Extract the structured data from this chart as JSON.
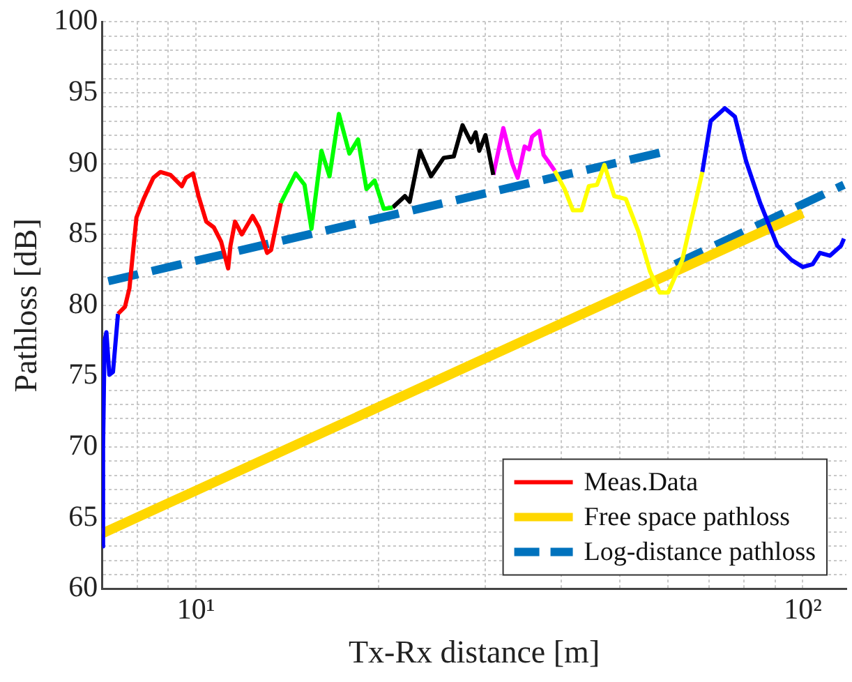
{
  "chart_data": {
    "type": "line",
    "xlabel": "Tx-Rx distance [m]",
    "ylabel": "Pathloss [dB]",
    "log": "x",
    "grid": true,
    "legend": "bottom right",
    "xlim": [
      7,
      118
    ],
    "ylim": [
      60,
      100
    ],
    "xticks": [
      {
        "value": 7,
        "label": null
      },
      {
        "value": 8,
        "label": null
      },
      {
        "value": 9,
        "label": null
      },
      {
        "value": 10,
        "label": "10¹"
      },
      {
        "value": 20,
        "label": null
      },
      {
        "value": 30,
        "label": null
      },
      {
        "value": 40,
        "label": null
      },
      {
        "value": 50,
        "label": null
      },
      {
        "value": 60,
        "label": null
      },
      {
        "value": 70,
        "label": null
      },
      {
        "value": 80,
        "label": null
      },
      {
        "value": 90,
        "label": null
      },
      {
        "value": 100,
        "label": "10²"
      }
    ],
    "yticks": [
      60,
      {
        "value": 61,
        "label": null
      },
      {
        "value": 62,
        "label": null
      },
      {
        "value": 63,
        "label": null
      },
      {
        "value": 64,
        "label": null
      },
      65,
      {
        "value": 66,
        "label": null
      },
      {
        "value": 67,
        "label": null
      },
      {
        "value": 68,
        "label": null
      },
      {
        "value": 69,
        "label": null
      },
      70,
      {
        "value": 71,
        "label": null
      },
      {
        "value": 72,
        "label": null
      },
      {
        "value": 73,
        "label": null
      },
      {
        "value": 74,
        "label": null
      },
      75,
      {
        "value": 76,
        "label": null
      },
      {
        "value": 77,
        "label": null
      },
      {
        "value": 78,
        "label": null
      },
      {
        "value": 79,
        "label": null
      },
      80,
      {
        "value": 81,
        "label": null
      },
      {
        "value": 82,
        "label": null
      },
      {
        "value": 83,
        "label": null
      },
      {
        "value": 84,
        "label": null
      },
      85,
      {
        "value": 86,
        "label": null
      },
      {
        "value": 87,
        "label": null
      },
      {
        "value": 88,
        "label": null
      },
      {
        "value": 89,
        "label": null
      },
      90,
      {
        "value": 91,
        "label": null
      },
      {
        "value": 92,
        "label": null
      },
      {
        "value": 93,
        "label": null
      },
      {
        "value": 94,
        "label": null
      },
      95,
      {
        "value": 96,
        "label": null
      },
      {
        "value": 97,
        "label": null
      },
      {
        "value": 98,
        "label": null
      },
      {
        "value": 99,
        "label": null
      },
      100
    ],
    "series": [
      {
        "name": "Meas.Data",
        "color": "#ff0000",
        "x": [
          7.44,
          7.64,
          7.77,
          7.98,
          8.2,
          8.51,
          8.74,
          9.08,
          9.48,
          9.63,
          9.89,
          10.1,
          10.4,
          10.7,
          11.0,
          11.3,
          11.4,
          11.6,
          11.9,
          12.4,
          12.7,
          13.1,
          13.3,
          13.8
        ],
        "values": [
          79.4,
          79.9,
          81.2,
          86.2,
          87.5,
          89.0,
          89.4,
          89.2,
          88.4,
          89.0,
          89.3,
          87.7,
          85.9,
          85.5,
          84.5,
          82.6,
          84.2,
          85.9,
          85.0,
          86.3,
          85.5,
          83.7,
          83.9,
          87.2
        ]
      },
      {
        "color": "#00ff00",
        "x": [
          13.8,
          14.6,
          15.1,
          15.5,
          16.1,
          16.6,
          17.2,
          17.9,
          18.5,
          19.1,
          19.7,
          20.4,
          21.1
        ],
        "values": [
          87.2,
          89.3,
          88.5,
          85.4,
          90.9,
          89.1,
          93.5,
          90.7,
          91.7,
          88.2,
          88.8,
          86.8,
          86.9
        ]
      },
      {
        "color": "#000000",
        "x": [
          21.1,
          22.1,
          22.5,
          23.4,
          24.4,
          25.6,
          26.6,
          27.5,
          28.4,
          28.9,
          29.3,
          30.0,
          30.9
        ],
        "values": [
          86.9,
          87.7,
          87.3,
          90.9,
          89.1,
          90.4,
          90.5,
          92.7,
          91.5,
          92.2,
          90.9,
          92.0,
          89.2
        ]
      },
      {
        "color": "#ff00ff",
        "x": [
          30.9,
          32.1,
          33.2,
          33.9,
          34.8,
          35.4,
          35.8,
          36.8,
          37.4,
          38.0,
          39.0
        ],
        "values": [
          89.2,
          92.5,
          90.0,
          89.0,
          91.2,
          91.0,
          91.9,
          92.3,
          90.6,
          90.2,
          89.5
        ]
      },
      {
        "color": "#ffff00",
        "x": [
          39.0,
          40.5,
          41.8,
          43.2,
          44.4,
          45.8,
          47.1,
          48.9,
          51.1,
          53.6,
          56.0,
          58.1,
          60.0,
          63.3,
          68.3
        ],
        "values": [
          89.5,
          88.2,
          86.7,
          86.7,
          88.4,
          88.5,
          89.9,
          87.7,
          87.5,
          85.2,
          82.4,
          80.9,
          80.9,
          83.2,
          89.4
        ]
      },
      {
        "color": "#0000ff",
        "x": [
          7.01,
          7.03,
          7.07,
          7.12,
          7.2,
          7.3,
          7.44
        ],
        "values": [
          63,
          70,
          77.5,
          78.1,
          75.1,
          75.3,
          79.4
        ]
      },
      {
        "color": "#0000ff",
        "x": [
          68.3,
          70.5,
          74.4,
          77.3,
          80.6,
          85.1,
          90.8,
          95.8,
          100,
          103.8,
          106.7,
          110.8,
          115.6,
          116.9
        ],
        "values": [
          89.4,
          93.0,
          93.9,
          93.3,
          90.2,
          87.2,
          84.2,
          83.2,
          82.7,
          82.9,
          83.7,
          83.5,
          84.2,
          84.7
        ]
      },
      {
        "name": "Free space pathloss",
        "color": "#ffd700",
        "x": [
          7.0,
          100
        ],
        "values": [
          63.9,
          86.5
        ]
      },
      {
        "name": "Log-distance pathloss",
        "color": "#0072bd",
        "line_style": "dashed",
        "x": [
          7.17,
          60,
          60.8,
          61.6,
          116.9
        ],
        "values": [
          81.7,
          90.9,
          null,
          82.9,
          88.5
        ]
      }
    ]
  }
}
